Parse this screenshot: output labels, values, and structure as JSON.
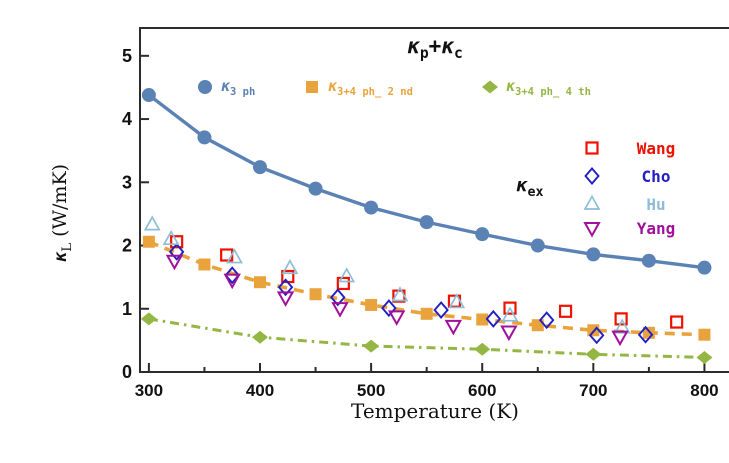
{
  "figure": {
    "title": {
      "k1": "κ",
      "s1": "p",
      "plus": "+",
      "k2": "κ",
      "s2": "c"
    },
    "x_axis": {
      "label": "Temperature (K)",
      "tick_labels": [
        "300",
        "400",
        "500",
        "600",
        "700",
        "800"
      ],
      "major_ticks": [
        300,
        400,
        500,
        600,
        700,
        800
      ],
      "minor_ticks": [
        350,
        450,
        550,
        650,
        750
      ]
    },
    "y_axis": {
      "kappa": "κ",
      "kappa_sub": "L",
      "unit": " (W/mK)",
      "tick_labels": [
        "0",
        "1",
        "2",
        "3",
        "4",
        "5"
      ],
      "major_ticks": [
        0,
        1,
        2,
        3,
        4,
        5
      ]
    },
    "frame_color": "#2b2b2b",
    "background": "#ffffff"
  },
  "chart_data": {
    "type": "line",
    "xlabel": "Temperature (K)",
    "ylabel": "κL (W/mK)",
    "xlim": [
      292,
      823
    ],
    "ylim": [
      0,
      5.44
    ],
    "grid": false,
    "series": [
      {
        "name": "κ3 ph",
        "color": "#5b82b5",
        "line": "solid",
        "marker": "circle",
        "x": [
          300,
          350,
          400,
          450,
          500,
          550,
          600,
          650,
          700,
          750,
          800
        ],
        "y": [
          4.38,
          3.71,
          3.24,
          2.9,
          2.6,
          2.37,
          2.18,
          2.0,
          1.86,
          1.76,
          1.65
        ]
      },
      {
        "name": "κ3+4 ph_ 2 nd",
        "color": "#e9a33c",
        "line": "dashed",
        "marker": "square",
        "x": [
          300,
          350,
          400,
          450,
          500,
          550,
          600,
          650,
          700,
          750,
          800
        ],
        "y": [
          2.06,
          1.7,
          1.42,
          1.23,
          1.06,
          0.92,
          0.83,
          0.74,
          0.66,
          0.62,
          0.59
        ]
      },
      {
        "name": "κ3+4 ph_ 4 th",
        "color": "#94b644",
        "line": "dashdot",
        "marker": "diamond",
        "x": [
          300,
          400,
          500,
          600,
          700,
          800
        ],
        "y": [
          0.84,
          0.55,
          0.41,
          0.36,
          0.28,
          0.23
        ]
      }
    ],
    "experimental": [
      {
        "name": "Wang",
        "color": "#ee1100",
        "marker": "open-square",
        "x": [
          325,
          370,
          425,
          475,
          525,
          575,
          625,
          675,
          725,
          775
        ],
        "y": [
          2.06,
          1.85,
          1.51,
          1.4,
          1.2,
          1.12,
          1.01,
          0.96,
          0.84,
          0.79
        ]
      },
      {
        "name": "Cho",
        "color": "#1f1fc4",
        "marker": "open-diamond",
        "x": [
          325,
          375,
          423,
          470,
          516,
          563,
          610,
          658,
          703,
          747
        ],
        "y": [
          1.9,
          1.53,
          1.34,
          1.18,
          1.01,
          0.98,
          0.84,
          0.82,
          0.58,
          0.59
        ]
      },
      {
        "name": "Hu",
        "color": "#8fbdd6",
        "marker": "triangle-up",
        "x": [
          303,
          320,
          377,
          427,
          478,
          526,
          577,
          625,
          726
        ],
        "y": [
          2.33,
          2.1,
          1.81,
          1.64,
          1.51,
          1.21,
          1.1,
          0.89,
          0.7
        ]
      },
      {
        "name": "Yang",
        "color": "#a0109b",
        "marker": "triangle-down",
        "x": [
          323,
          375,
          423,
          472,
          523,
          574,
          624,
          724
        ],
        "y": [
          1.76,
          1.46,
          1.18,
          1.01,
          0.88,
          0.73,
          0.64,
          0.56
        ]
      }
    ]
  },
  "legend": {
    "entries": [
      {
        "kappa": "κ",
        "sub": "3 ph",
        "marker": "circle",
        "color": "#5b82b5"
      },
      {
        "kappa": "κ",
        "sub": "3+4 ph_ 2 nd",
        "marker": "square",
        "color": "#e9a33c"
      },
      {
        "kappa": "κ",
        "sub": "3+4 ph_ 4 th",
        "marker": "diamond",
        "color": "#94b644"
      }
    ]
  },
  "exp_legend": {
    "kappa": "κ",
    "sub": "ex",
    "entries": [
      {
        "name": "Wang",
        "marker": "open-square",
        "color": "#ee1100"
      },
      {
        "name": "Cho",
        "marker": "open-diamond",
        "color": "#1f1fc4"
      },
      {
        "name": "Hu",
        "marker": "triangle-up",
        "color": "#8fbdd6"
      },
      {
        "name": "Yang",
        "marker": "triangle-down",
        "color": "#a0109b"
      }
    ]
  }
}
